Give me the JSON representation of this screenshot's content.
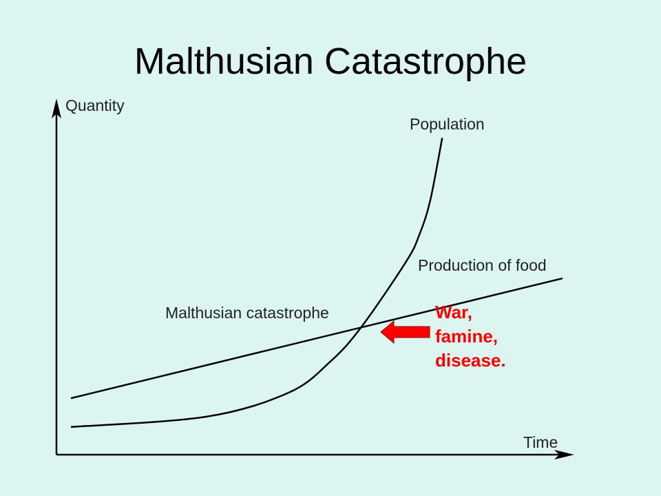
{
  "slide": {
    "title": "Malthusian Catastrophe"
  },
  "chart_data": {
    "type": "line",
    "title": "Malthusian Catastrophe",
    "xlabel": "Time",
    "ylabel": "Quantity",
    "xlim": [
      0,
      100
    ],
    "ylim": [
      0,
      100
    ],
    "grid": false,
    "series": [
      {
        "name": "Population",
        "color": "#000000",
        "x": [
          2.8,
          29,
          45,
          53,
          59,
          67.7,
          70.3,
          72.4,
          74.7
        ],
        "y": [
          7.8,
          10.7,
          17.5,
          26.2,
          35.9,
          54.4,
          62.1,
          71.8,
          89.3
        ]
      },
      {
        "name": "Production of food",
        "color": "#000000",
        "x": [
          2.8,
          98
        ],
        "y": [
          15.9,
          49.7
        ]
      }
    ],
    "annotations": [
      {
        "text": "Malthusian catastrophe"
      },
      {
        "lines": [
          "War,",
          "famine,",
          "disease."
        ],
        "color": "#ff0000"
      }
    ]
  }
}
